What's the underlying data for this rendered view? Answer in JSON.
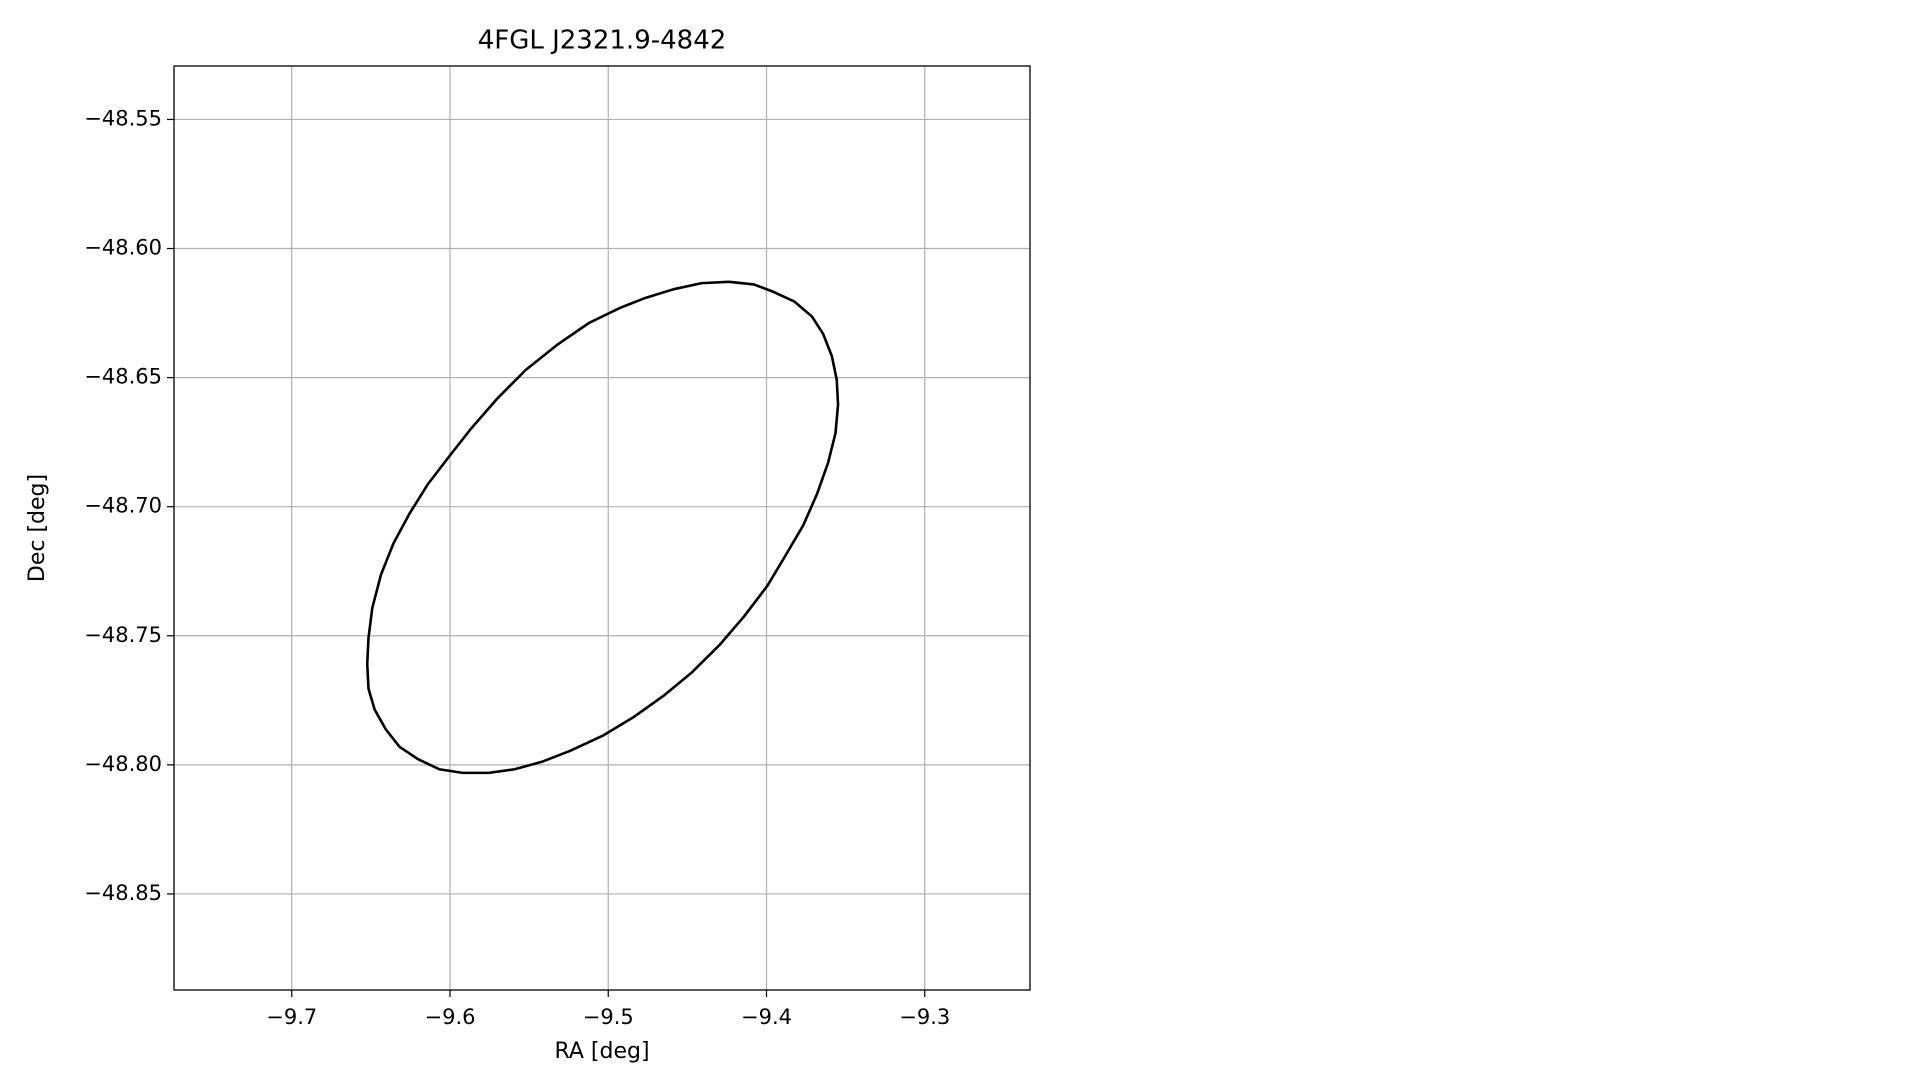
{
  "chart_data": {
    "type": "line",
    "title": "4FGL J2321.9-4842",
    "xlabel": "RA [deg]",
    "ylabel": "Dec [deg]",
    "grid": true,
    "xlim": [
      -9.7744,
      -9.2335
    ],
    "ylim": [
      -48.8872,
      -48.5293
    ],
    "xticks": [
      {
        "value": -9.7,
        "label": "−9.7"
      },
      {
        "value": -9.6,
        "label": "−9.6"
      },
      {
        "value": -9.5,
        "label": "−9.5"
      },
      {
        "value": -9.4,
        "label": "−9.4"
      },
      {
        "value": -9.3,
        "label": "−9.3"
      }
    ],
    "yticks": [
      {
        "value": -48.55,
        "label": "−48.55"
      },
      {
        "value": -48.6,
        "label": "−48.60"
      },
      {
        "value": -48.65,
        "label": "−48.65"
      },
      {
        "value": -48.7,
        "label": "−48.70"
      },
      {
        "value": -48.75,
        "label": "−48.75"
      },
      {
        "value": -48.8,
        "label": "−48.80"
      },
      {
        "value": -48.85,
        "label": "−48.85"
      }
    ],
    "series": [
      {
        "color": "#000000",
        "x": [
          -9.4237,
          -9.408,
          -9.3955,
          -9.3822,
          -9.3712,
          -9.3642,
          -9.3587,
          -9.3556,
          -9.3548,
          -9.3564,
          -9.3611,
          -9.3681,
          -9.3767,
          -9.3877,
          -9.3994,
          -9.4143,
          -9.4299,
          -9.4472,
          -9.4652,
          -9.484,
          -9.5035,
          -9.5239,
          -9.5419,
          -9.5591,
          -9.5755,
          -9.592,
          -9.6068,
          -9.6202,
          -9.6319,
          -9.6405,
          -9.6476,
          -9.6515,
          -9.6523,
          -9.6515,
          -9.6491,
          -9.6436,
          -9.6358,
          -9.6256,
          -9.6139,
          -9.6006,
          -9.5865,
          -9.5701,
          -9.5521,
          -9.5325,
          -9.5121,
          -9.4926,
          -9.4769,
          -9.4589,
          -9.4409,
          -9.4237
        ],
        "values": [
          -48.6129,
          -48.6139,
          -48.6168,
          -48.6206,
          -48.6264,
          -48.6331,
          -48.6417,
          -48.6509,
          -48.6605,
          -48.6715,
          -48.683,
          -48.6951,
          -48.7071,
          -48.7186,
          -48.7306,
          -48.7426,
          -48.7537,
          -48.7642,
          -48.7733,
          -48.7815,
          -48.7887,
          -48.7945,
          -48.7988,
          -48.8017,
          -48.8031,
          -48.8031,
          -48.8017,
          -48.7978,
          -48.793,
          -48.7863,
          -48.7786,
          -48.7705,
          -48.7609,
          -48.7508,
          -48.7392,
          -48.7263,
          -48.7143,
          -48.7027,
          -48.6912,
          -48.6806,
          -48.6696,
          -48.6581,
          -48.647,
          -48.6374,
          -48.6288,
          -48.623,
          -48.6192,
          -48.6158,
          -48.6134,
          -48.6129
        ]
      }
    ]
  }
}
